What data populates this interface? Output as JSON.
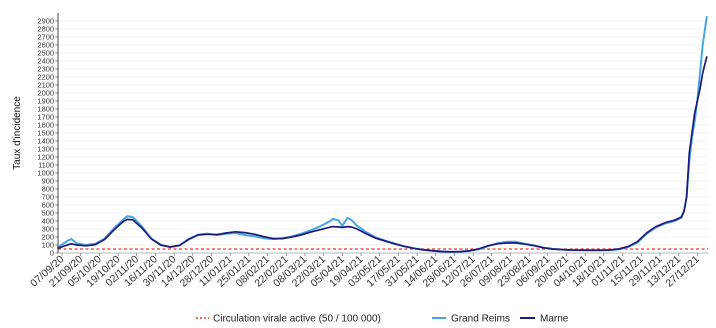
{
  "chart_data": {
    "type": "line",
    "title": "",
    "xlabel": "",
    "ylabel": "Taux d'incidence",
    "xscale": "date",
    "xlim": [
      "04/09/20",
      "04/01/22"
    ],
    "ylim": [
      0,
      3000
    ],
    "grid": true,
    "legend_position": "bottom",
    "xticks": [
      "07/09/20",
      "21/09/20",
      "05/10/20",
      "19/10/20",
      "02/11/20",
      "16/11/20",
      "30/11/20",
      "14/12/20",
      "28/12/20",
      "11/01/21",
      "25/01/21",
      "08/02/21",
      "22/02/21",
      "08/03/21",
      "22/03/21",
      "05/04/21",
      "19/04/21",
      "03/05/21",
      "17/05/21",
      "31/05/21",
      "14/06/21",
      "28/06/21",
      "12/07/21",
      "26/07/21",
      "09/08/21",
      "23/08/21",
      "06/09/21",
      "20/09/21",
      "04/10/21",
      "18/10/21",
      "01/11/21",
      "15/11/21",
      "29/11/21",
      "13/12/21",
      "27/12/21"
    ],
    "yticks": [
      0,
      100,
      200,
      300,
      400,
      500,
      600,
      700,
      800,
      900,
      1000,
      1100,
      1200,
      1300,
      1400,
      1500,
      1600,
      1700,
      1800,
      1900,
      2000,
      2100,
      2200,
      2300,
      2400,
      2500,
      2600,
      2700,
      2800,
      2900
    ],
    "threshold": {
      "label": "Circulation virale active (50 / 100 000)",
      "value": 50,
      "color": "#e8392c"
    },
    "x": [
      "04/09/20",
      "11/09/20",
      "14/09/20",
      "18/09/20",
      "25/09/20",
      "02/10/20",
      "09/10/20",
      "16/10/20",
      "23/10/20",
      "26/10/20",
      "30/10/20",
      "06/11/20",
      "13/11/20",
      "20/11/20",
      "27/11/20",
      "04/12/20",
      "11/12/20",
      "18/12/20",
      "25/12/20",
      "01/01/21",
      "08/01/21",
      "15/01/21",
      "22/01/21",
      "29/01/21",
      "05/02/21",
      "12/02/21",
      "19/02/21",
      "26/02/21",
      "05/03/21",
      "12/03/21",
      "19/03/21",
      "26/03/21",
      "29/03/21",
      "02/04/21",
      "05/04/21",
      "09/04/21",
      "12/04/21",
      "16/04/21",
      "23/04/21",
      "30/04/21",
      "07/05/21",
      "14/05/21",
      "21/05/21",
      "28/05/21",
      "04/06/21",
      "11/06/21",
      "18/06/21",
      "25/06/21",
      "02/07/21",
      "09/07/21",
      "16/07/21",
      "23/07/21",
      "30/07/21",
      "06/08/21",
      "13/08/21",
      "20/08/21",
      "27/08/21",
      "03/09/21",
      "10/09/21",
      "17/09/21",
      "24/09/21",
      "01/10/21",
      "08/10/21",
      "15/10/21",
      "22/10/21",
      "29/10/21",
      "05/11/21",
      "12/11/21",
      "19/11/21",
      "26/11/21",
      "03/12/21",
      "10/12/21",
      "15/12/21",
      "17/12/21",
      "19/12/21",
      "21/12/21",
      "23/12/21",
      "25/12/21",
      "27/12/21",
      "29/12/21",
      "31/12/21",
      "03/01/22"
    ],
    "series": [
      {
        "name": "Grand Reims",
        "color": "#48a4e4",
        "values": [
          70,
          150,
          175,
          120,
          100,
          115,
          180,
          310,
          420,
          460,
          450,
          330,
          180,
          100,
          75,
          95,
          175,
          230,
          240,
          225,
          240,
          250,
          225,
          210,
          185,
          175,
          185,
          205,
          240,
          280,
          330,
          390,
          425,
          410,
          340,
          440,
          410,
          340,
          260,
          195,
          155,
          120,
          85,
          60,
          40,
          28,
          18,
          14,
          16,
          25,
          45,
          85,
          120,
          140,
          140,
          115,
          95,
          65,
          50,
          42,
          36,
          35,
          33,
          33,
          35,
          45,
          75,
          130,
          240,
          320,
          370,
          400,
          440,
          520,
          700,
          1150,
          1450,
          1650,
          1900,
          2250,
          2600,
          2950
        ]
      },
      {
        "name": "Marne",
        "color": "#1b1b7a",
        "values": [
          60,
          100,
          115,
          100,
          90,
          105,
          170,
          290,
          395,
          420,
          415,
          310,
          175,
          100,
          75,
          95,
          170,
          225,
          235,
          230,
          250,
          265,
          255,
          235,
          205,
          180,
          180,
          200,
          225,
          260,
          290,
          320,
          330,
          325,
          320,
          330,
          325,
          300,
          240,
          185,
          150,
          115,
          85,
          60,
          42,
          30,
          20,
          15,
          18,
          28,
          50,
          90,
          115,
          125,
          125,
          110,
          90,
          65,
          50,
          42,
          38,
          36,
          35,
          35,
          38,
          50,
          80,
          140,
          250,
          330,
          380,
          410,
          450,
          520,
          700,
          1250,
          1500,
          1750,
          1900,
          2050,
          2250,
          2450
        ]
      }
    ]
  }
}
